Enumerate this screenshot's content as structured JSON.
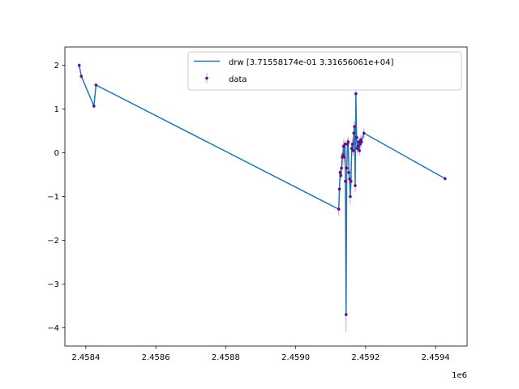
{
  "chart_data": {
    "type": "line",
    "xlabel": "",
    "ylabel": "",
    "x_offset_label": "1e6",
    "xlim": [
      2.45834,
      2.45949
    ],
    "ylim": [
      -4.42,
      2.42
    ],
    "x_ticks": [
      2.4584,
      2.4586,
      2.4588,
      2.459,
      2.4592,
      2.4594
    ],
    "x_tick_labels": [
      "2.4584",
      "2.4586",
      "2.4588",
      "2.4590",
      "2.4592",
      "2.4594"
    ],
    "y_ticks": [
      -4,
      -3,
      -2,
      -1,
      0,
      1,
      2
    ],
    "y_tick_labels": [
      "−4",
      "−3",
      "−2",
      "−1",
      "0",
      "1",
      "2"
    ],
    "grid": false,
    "legend_position": "top-right",
    "colors": {
      "line": "#1f77b4",
      "marker": "#6a0a8a",
      "errorbar": "#c4a9c4"
    },
    "series": [
      {
        "name": "drw [3.71558174e-01 3.31656061e+04]",
        "kind": "line",
        "x": [
          2.458381,
          2.458387,
          2.458423,
          2.458429,
          2.459123,
          2.459125,
          2.459127,
          2.459129,
          2.459131,
          2.459133,
          2.459135,
          2.459137,
          2.459139,
          2.459141,
          2.459142,
          2.459144,
          2.459146,
          2.459148,
          2.45915,
          2.459152,
          2.459154,
          2.459156,
          2.459158,
          2.45916,
          2.459162,
          2.459164,
          2.459166,
          2.459168,
          2.45917,
          2.459172,
          2.459174,
          2.459176,
          2.459178,
          2.45918,
          2.459182,
          2.459184,
          2.459186,
          2.459188,
          2.459195,
          2.459427
        ],
        "y": [
          2.0,
          1.75,
          1.07,
          1.55,
          -1.29,
          -0.83,
          -0.45,
          -0.52,
          -0.35,
          -0.1,
          -0.05,
          0.15,
          -0.1,
          0.2,
          -0.65,
          -3.7,
          -0.35,
          0.2,
          0.25,
          -0.45,
          -0.6,
          -1.0,
          -0.65,
          0.1,
          0.2,
          0.05,
          0.45,
          0.6,
          -0.75,
          1.35,
          0.35,
          0.1,
          0.15,
          0.25,
          0.05,
          0.2,
          0.3,
          0.25,
          0.45,
          -0.59
        ]
      },
      {
        "name": "data",
        "kind": "errorbar",
        "x": [
          2.458381,
          2.458387,
          2.458423,
          2.458429,
          2.459123,
          2.459125,
          2.459127,
          2.459129,
          2.459131,
          2.459133,
          2.459135,
          2.459137,
          2.459139,
          2.459141,
          2.459142,
          2.459144,
          2.459146,
          2.459148,
          2.45915,
          2.459152,
          2.459154,
          2.459156,
          2.459158,
          2.45916,
          2.459162,
          2.459164,
          2.459166,
          2.459168,
          2.45917,
          2.459172,
          2.459174,
          2.459176,
          2.459178,
          2.45918,
          2.459182,
          2.459184,
          2.459186,
          2.459188,
          2.459195,
          2.459427
        ],
        "y": [
          2.0,
          1.75,
          1.07,
          1.55,
          -1.29,
          -0.83,
          -0.45,
          -0.52,
          -0.35,
          -0.1,
          -0.05,
          0.15,
          -0.1,
          0.2,
          -0.65,
          -3.7,
          -0.35,
          0.2,
          0.25,
          -0.45,
          -0.6,
          -1.0,
          -0.65,
          0.1,
          0.2,
          0.05,
          0.45,
          0.6,
          -0.75,
          1.35,
          0.35,
          0.1,
          0.15,
          0.25,
          0.05,
          0.2,
          0.3,
          0.25,
          0.45,
          -0.59
        ],
        "yerr": [
          0.05,
          0.05,
          0.05,
          0.05,
          0.15,
          0.12,
          0.12,
          0.1,
          0.15,
          0.12,
          0.25,
          0.15,
          0.12,
          0.1,
          0.15,
          0.4,
          0.15,
          0.12,
          0.12,
          0.12,
          0.15,
          0.18,
          0.12,
          0.12,
          0.12,
          0.12,
          0.15,
          0.12,
          0.15,
          0.1,
          0.12,
          0.12,
          0.12,
          0.12,
          0.12,
          0.12,
          0.12,
          0.12,
          0.12,
          0.05
        ]
      }
    ]
  }
}
